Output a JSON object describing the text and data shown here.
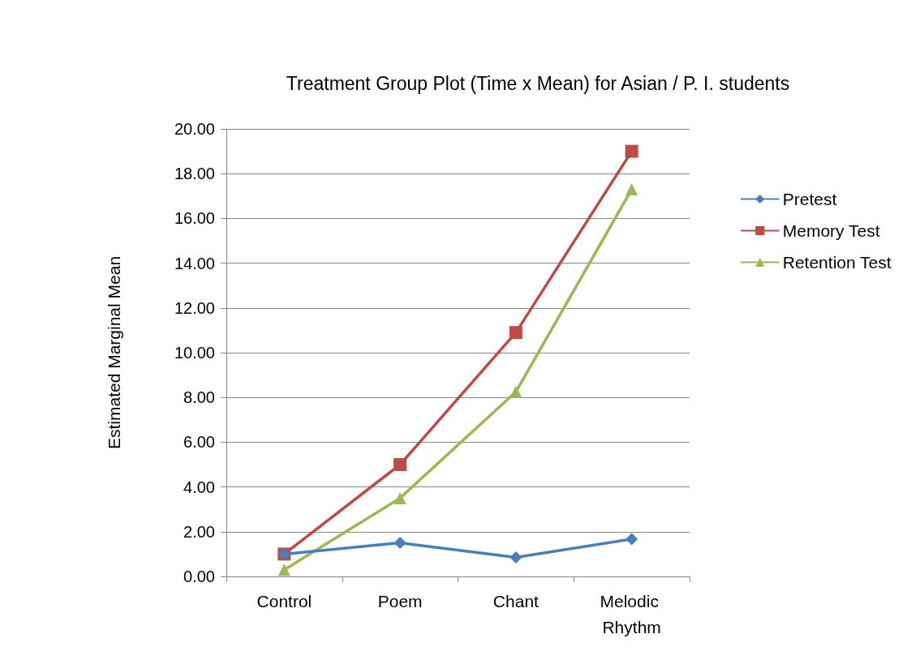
{
  "chart_data": {
    "type": "line",
    "title": "Treatment Group Plot (Time x Mean) for Asian / P. I. students",
    "ylabel": "Estimated Marginal Mean",
    "categories": [
      "Control",
      "Poem",
      "Chant",
      "Melodic Rhythm"
    ],
    "series": [
      {
        "name": "Pretest",
        "color": "#4a7ebb",
        "marker": "diamond",
        "values": [
          1.0,
          1.5,
          0.85,
          1.67
        ]
      },
      {
        "name": "Memory Test",
        "color": "#be4b48",
        "marker": "square",
        "values": [
          1.0,
          5.0,
          10.9,
          19.0
        ]
      },
      {
        "name": "Retention Test",
        "color": "#98b954",
        "marker": "triangle",
        "values": [
          0.3,
          3.5,
          8.25,
          17.3
        ]
      }
    ],
    "ylim": [
      0,
      20
    ],
    "yticks": [
      {
        "value": 0,
        "label": "0.00"
      },
      {
        "value": 2,
        "label": "2.00"
      },
      {
        "value": 4,
        "label": "4.00"
      },
      {
        "value": 6,
        "label": "6.00"
      },
      {
        "value": 8,
        "label": "8.00"
      },
      {
        "value": 10,
        "label": "10.00"
      },
      {
        "value": 12,
        "label": "12.00"
      },
      {
        "value": 14,
        "label": "14.00"
      },
      {
        "value": 16,
        "label": "16.00"
      },
      {
        "value": 18,
        "label": "18.00"
      },
      {
        "value": 20,
        "label": "20.00"
      }
    ],
    "grid": "y",
    "legend": "right",
    "line_style": "solid"
  }
}
